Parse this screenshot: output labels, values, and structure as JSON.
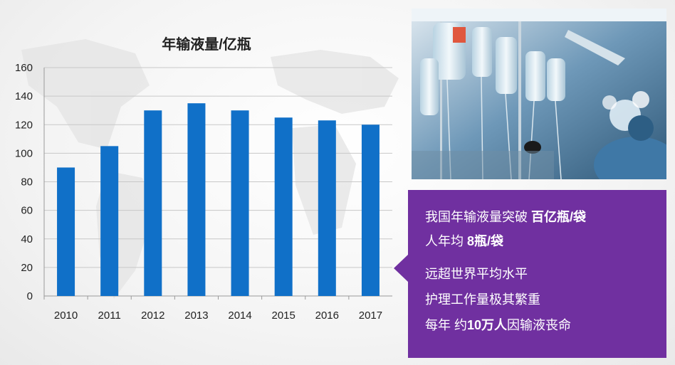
{
  "chart_data": {
    "type": "bar",
    "title": "年输液量/亿瓶",
    "categories": [
      "2010",
      "2011",
      "2012",
      "2013",
      "2014",
      "2015",
      "2016",
      "2017"
    ],
    "values": [
      90,
      105,
      130,
      135,
      130,
      125,
      123,
      120
    ],
    "ylim": [
      0,
      160
    ],
    "yticks": [
      0,
      20,
      40,
      60,
      80,
      100,
      120,
      140,
      160
    ],
    "grid": true,
    "bar_color": "#1070c8"
  },
  "callout": {
    "line1": "我国年输液量突破 ",
    "line1_bold": "百亿瓶/袋",
    "line2": "人年均 ",
    "line2_bold": "8瓶/袋",
    "line3": "远超世界平均水平",
    "line4": "护理工作量极其繁重",
    "line5a": "每年 约",
    "line5_bold": "10万人",
    "line5b": "因输液丧命",
    "color": "#7030a0"
  }
}
